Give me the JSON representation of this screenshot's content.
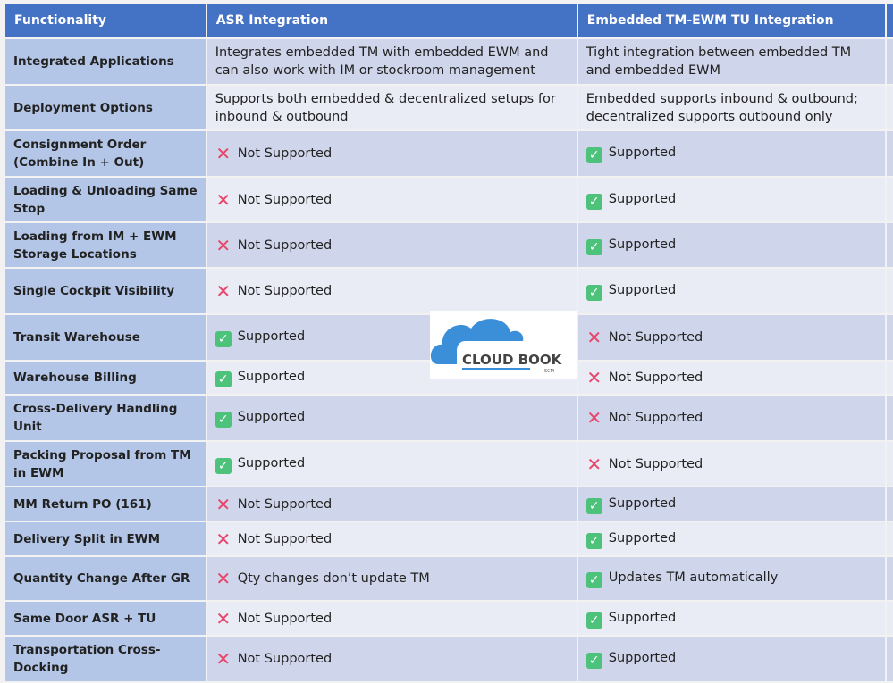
{
  "headers": [
    "Functionality",
    "ASR Integration",
    "Embedded TM-EWM TU Integration"
  ],
  "rows": [
    {
      "f": "Integrated Applications",
      "a": "Integrates embedded TM with embedded EWM and can also work with IM or stockroom management",
      "b": "Tight integration between embedded TM and embedded EWM",
      "h": 50
    },
    {
      "f": "Deployment Options",
      "a": "Supports both embedded & decentralized setups for inbound & outbound",
      "b": "Embedded supports inbound & outbound; decentralized supports outbound only",
      "h": 49
    },
    {
      "f": "Consignment Order (Combine In + Out)",
      "a": "Not Supported",
      "ai": "no",
      "b": "Supported",
      "bi": "yes",
      "h": 50
    },
    {
      "f": "Loading & Unloading Same Stop",
      "a": "Not Supported",
      "ai": "no",
      "b": "Supported",
      "bi": "yes",
      "h": 49
    },
    {
      "f": "Loading from IM + EWM Storage Locations",
      "a": "Not Supported",
      "ai": "no",
      "b": "Supported",
      "bi": "yes",
      "h": 49
    },
    {
      "f": "Single Cockpit Visibility",
      "a": "Not Supported",
      "ai": "no",
      "b": "Supported",
      "bi": "yes",
      "h": 50
    },
    {
      "f": "Transit Warehouse",
      "a": "Supported",
      "ai": "yes",
      "b": "Not Supported",
      "bi": "no",
      "h": 50
    },
    {
      "f": "Warehouse Billing",
      "a": "Supported",
      "ai": "yes",
      "b": "Not Supported",
      "bi": "no",
      "h": 36
    },
    {
      "f": "Cross-Delivery Handling Unit",
      "a": "Supported",
      "ai": "yes",
      "b": "Not Supported",
      "bi": "no",
      "h": 50
    },
    {
      "f": "Packing Proposal from TM in EWM",
      "a": "Supported",
      "ai": "yes",
      "b": "Not Supported",
      "bi": "no",
      "h": 49
    },
    {
      "f": "MM Return PO (161)",
      "a": "Not Supported",
      "ai": "no",
      "b": "Supported",
      "bi": "yes",
      "h": 37
    },
    {
      "f": "Delivery Split in EWM",
      "a": "Not Supported",
      "ai": "no",
      "b": "Supported",
      "bi": "yes",
      "h": 37
    },
    {
      "f": "Quantity Change After GR",
      "a": "Qty changes don’t update TM",
      "ai": "no",
      "b": "Updates TM automatically",
      "bi": "yes",
      "h": 48
    },
    {
      "f": "Same Door ASR + TU",
      "a": "Not Supported",
      "ai": "no",
      "b": "Supported",
      "bi": "yes",
      "h": 37
    },
    {
      "f": "Transportation Cross-Docking",
      "a": "Not Supported",
      "ai": "no",
      "b": "Supported",
      "bi": "yes",
      "h": 50
    }
  ],
  "icons": {
    "yes": "check-mark-icon",
    "no": "cross-mark-icon"
  },
  "colors": {
    "header": "#4472c4",
    "first_col": "#b4c6e7",
    "row_dark": "#cfd5ea",
    "row_light": "#e9ebf5",
    "check": "#4cc27a",
    "cross": "#e8456a"
  },
  "logo": {
    "text": "CLOUD BOOK",
    "sub": "SCM"
  }
}
